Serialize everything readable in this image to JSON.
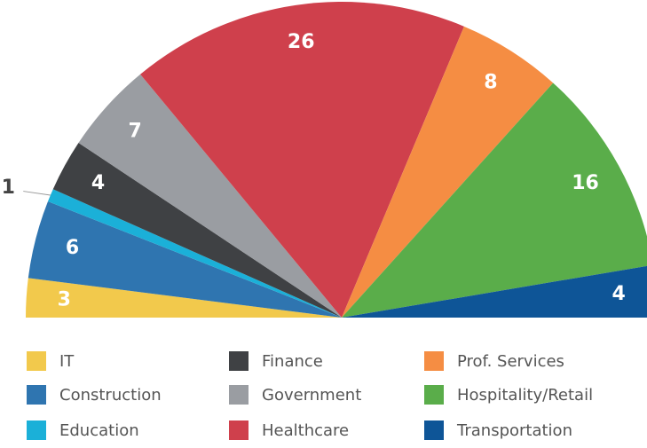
{
  "chart_data": {
    "type": "pie",
    "half": true,
    "categories": [
      "IT",
      "Construction",
      "Education",
      "Finance",
      "Government",
      "Healthcare",
      "Prof. Services",
      "Hospitality/Retail",
      "Transportation"
    ],
    "values": [
      3,
      6,
      1,
      4,
      7,
      26,
      8,
      16,
      4
    ],
    "colors": [
      "#f2c94c",
      "#2f75b0",
      "#1bb0d8",
      "#3f4144",
      "#9a9da2",
      "#cf404c",
      "#f58d43",
      "#5aad4a",
      "#0e5597"
    ],
    "legend": "bottom"
  }
}
